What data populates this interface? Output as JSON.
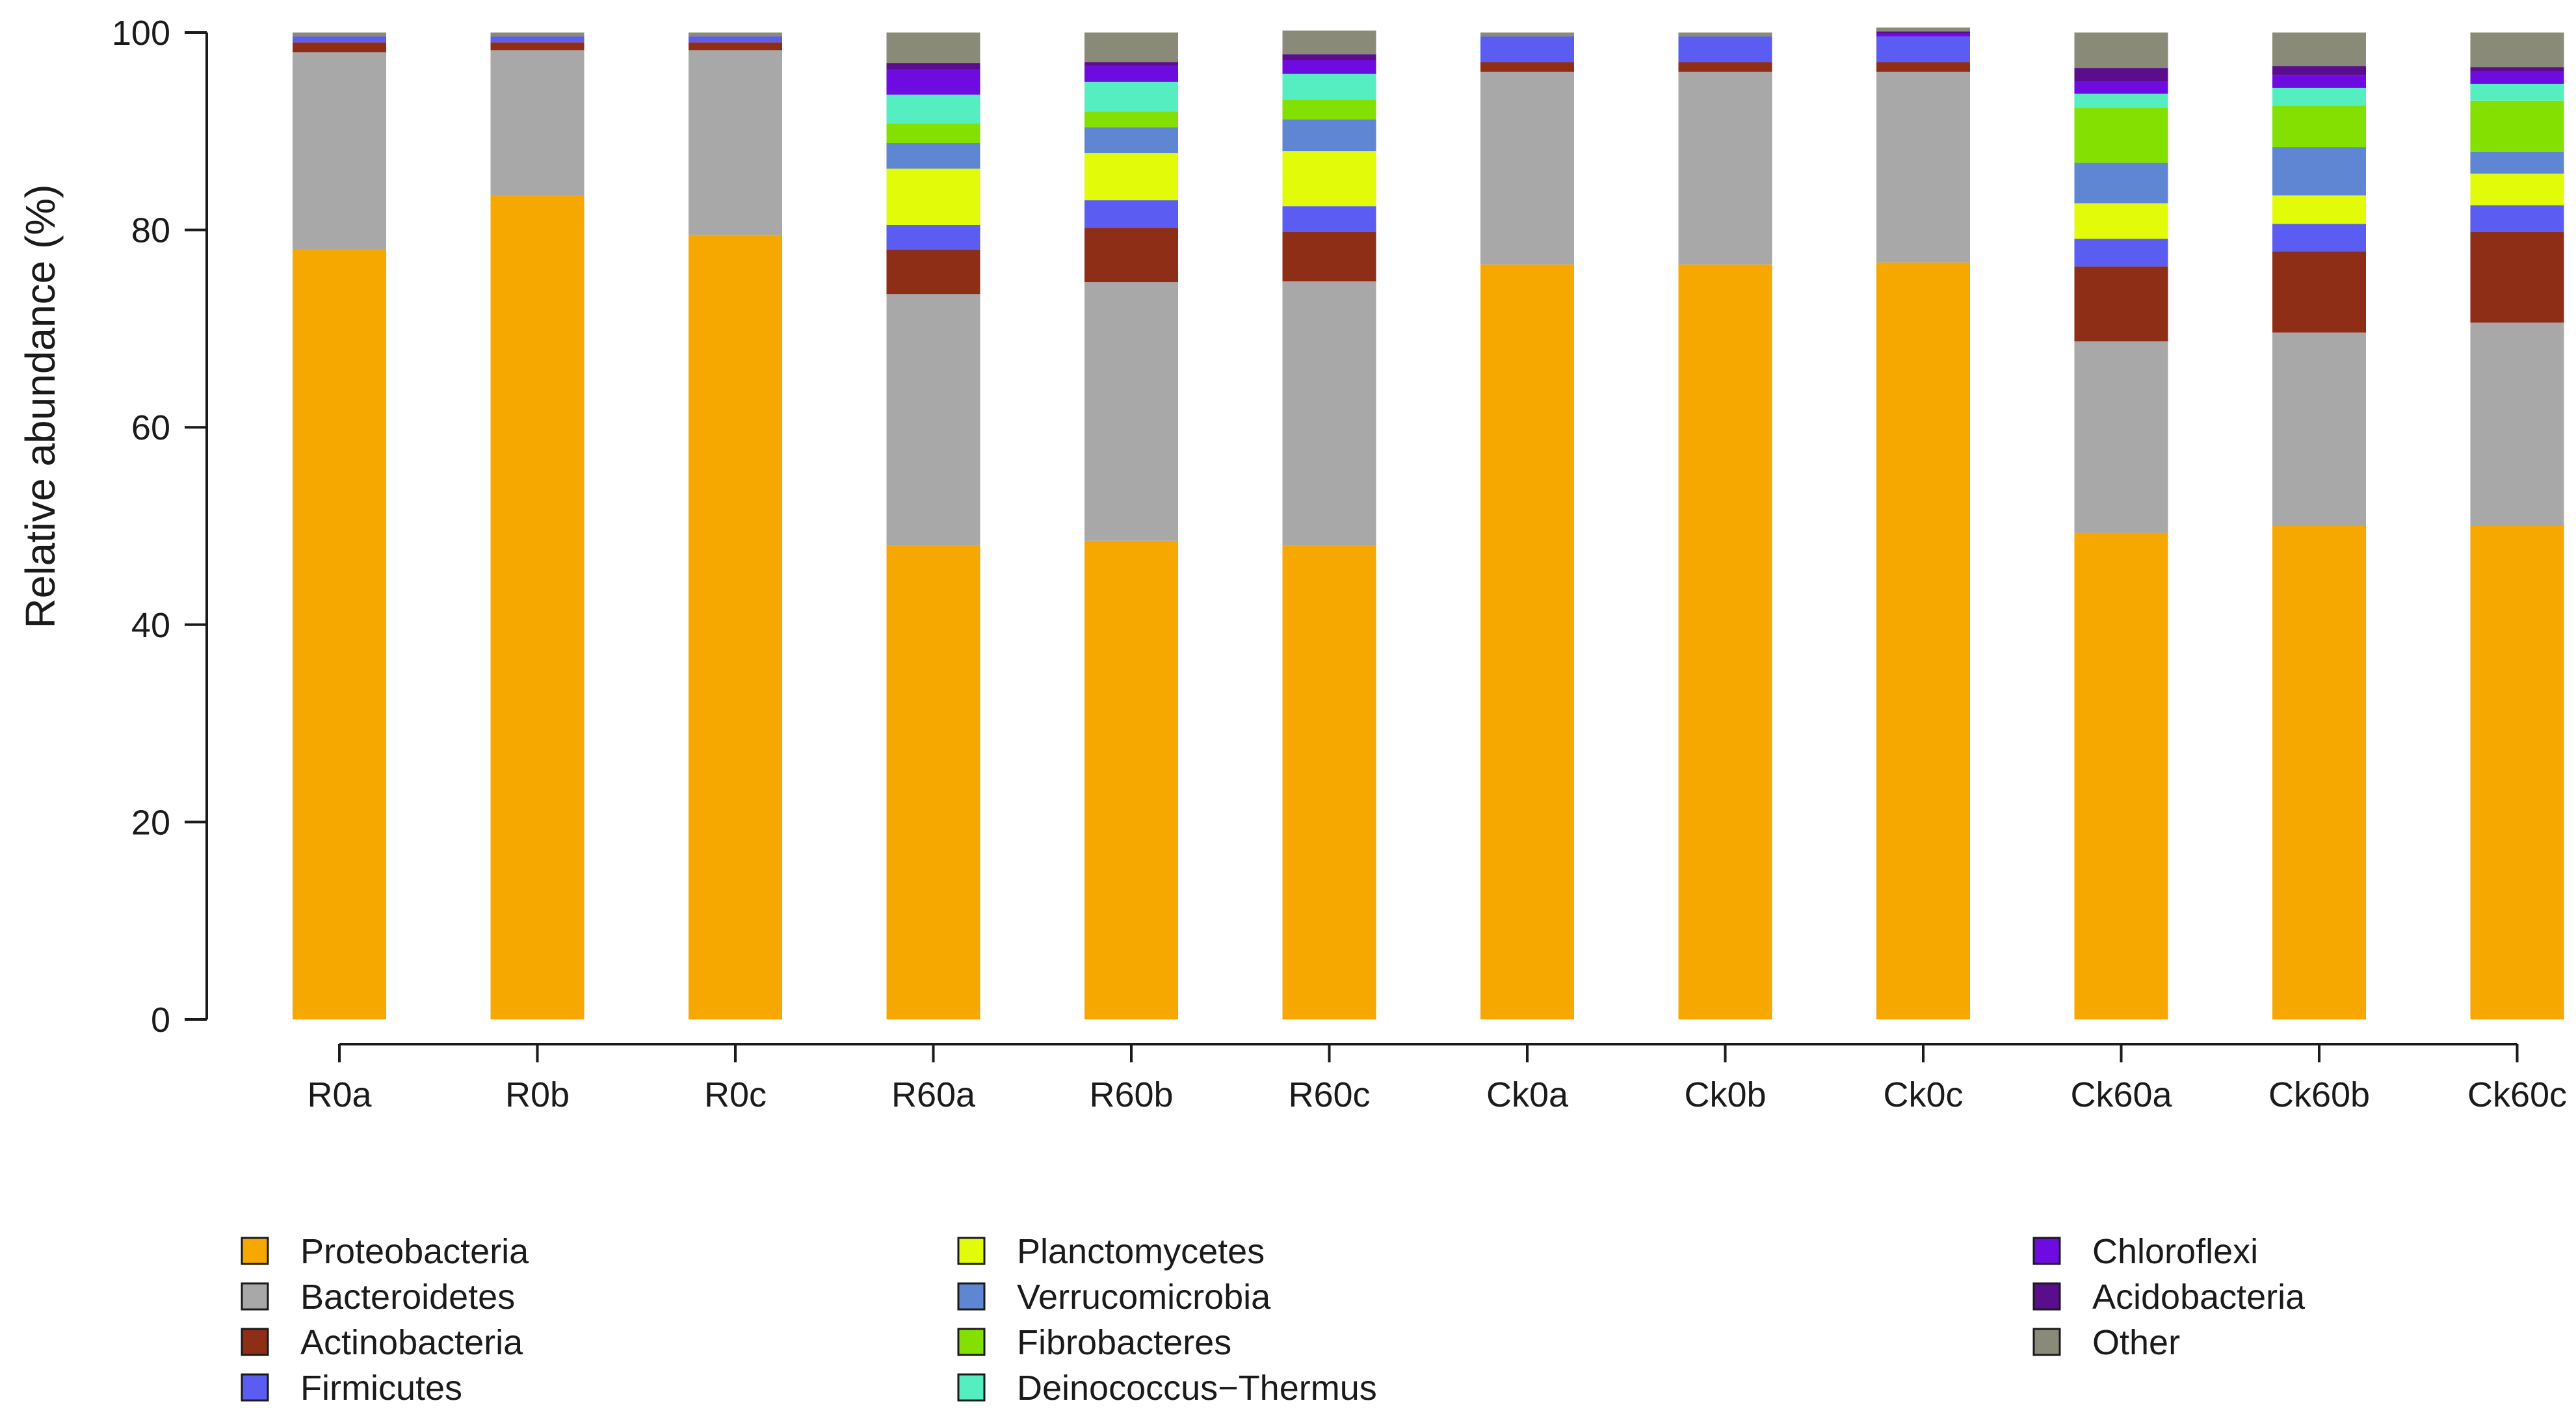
{
  "chart_data": {
    "type": "bar",
    "stacked": true,
    "title": "",
    "xlabel": "",
    "ylabel": "Relative abundance (%)",
    "ylim": [
      0,
      100
    ],
    "yticks": [
      0,
      20,
      40,
      60,
      80,
      100
    ],
    "grid": false,
    "legend_position": "bottom",
    "categories": [
      "R0a",
      "R0b",
      "R0c",
      "R60a",
      "R60b",
      "R60c",
      "Ck0a",
      "Ck0b",
      "Ck0c",
      "Ck60a",
      "Ck60b",
      "Ck60c"
    ],
    "series": [
      {
        "name": "Proteobacteria",
        "color": "#F7A800",
        "values": [
          78.0,
          83.5,
          79.5,
          48.0,
          48.5,
          48.0,
          76.5,
          76.5,
          76.7,
          49.3,
          50.0,
          50.0
        ]
      },
      {
        "name": "Bacteroidetes",
        "color": "#A8A8A8",
        "values": [
          20.0,
          14.7,
          18.7,
          25.5,
          26.2,
          26.8,
          19.5,
          19.5,
          19.3,
          19.4,
          19.6,
          20.6
        ]
      },
      {
        "name": "Actinobacteria",
        "color": "#8E2E17",
        "values": [
          1.0,
          0.8,
          0.8,
          4.5,
          5.5,
          5.0,
          1.0,
          1.0,
          1.0,
          7.6,
          8.2,
          9.2
        ]
      },
      {
        "name": "Firmicutes",
        "color": "#5A5CF2",
        "values": [
          0.6,
          0.6,
          0.6,
          2.5,
          2.8,
          2.6,
          2.6,
          2.6,
          2.6,
          2.8,
          2.8,
          2.7
        ]
      },
      {
        "name": "Planctomycetes",
        "color": "#E2FB08",
        "values": [
          0,
          0,
          0,
          5.7,
          4.8,
          5.6,
          0,
          0,
          0,
          3.6,
          2.9,
          3.2
        ]
      },
      {
        "name": "Verrucomicrobia",
        "color": "#5F86D2",
        "values": [
          0,
          0,
          0,
          2.6,
          2.6,
          3.2,
          0,
          0,
          0,
          4.1,
          4.9,
          2.2
        ]
      },
      {
        "name": "Fibrobacteres",
        "color": "#84E000",
        "values": [
          0,
          0,
          0,
          2.0,
          1.6,
          2.0,
          0,
          0,
          0,
          5.6,
          4.2,
          5.2
        ]
      },
      {
        "name": "Deinococcus−Thermus",
        "color": "#54EEC0",
        "values": [
          0,
          0,
          0,
          2.9,
          3.0,
          2.6,
          0,
          0,
          0,
          1.4,
          1.8,
          1.7
        ]
      },
      {
        "name": "Chloroflexi",
        "color": "#6E0BE0",
        "values": [
          0,
          0,
          0,
          2.5,
          1.6,
          1.4,
          0,
          0,
          0.3,
          1.2,
          1.3,
          1.2
        ]
      },
      {
        "name": "Acidobacteria",
        "color": "#5A0E8E",
        "values": [
          0,
          0,
          0,
          0.7,
          0.4,
          0.6,
          0,
          0,
          0.2,
          1.4,
          0.9,
          0.5
        ]
      },
      {
        "name": "Other",
        "color": "#8A8A78",
        "values": [
          0.4,
          0.4,
          0.4,
          3.1,
          3.0,
          2.4,
          0.4,
          0.4,
          0.4,
          3.6,
          3.4,
          3.5
        ]
      }
    ],
    "legend_columns": [
      [
        "Proteobacteria",
        "Bacteroidetes",
        "Actinobacteria",
        "Firmicutes"
      ],
      [
        "Planctomycetes",
        "Verrucomicrobia",
        "Fibrobacteres",
        "Deinococcus−Thermus"
      ],
      [
        "Chloroflexi",
        "Acidobacteria",
        "Other"
      ]
    ]
  }
}
